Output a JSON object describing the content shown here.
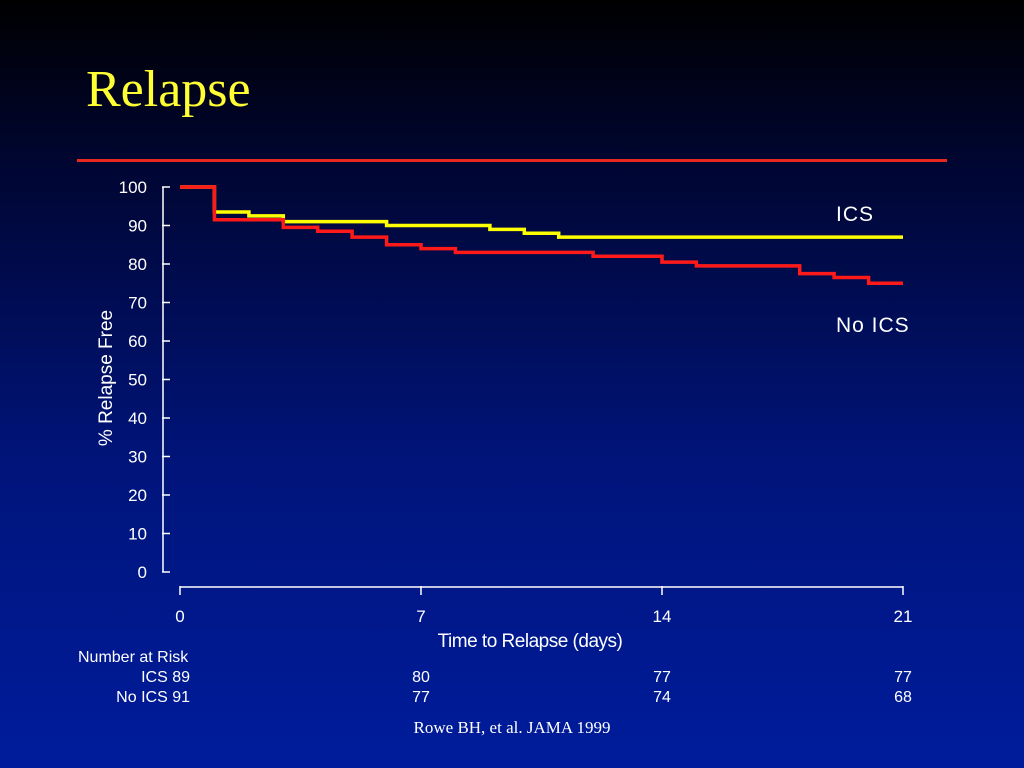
{
  "slide": {
    "title": "Relapse",
    "citation": "Rowe BH, et al. JAMA 1999"
  },
  "colors": {
    "title": "#ffff33",
    "rule": "#e8281e",
    "ics": "#ffff00",
    "no_ics": "#ff1a1a"
  },
  "chart_data": {
    "type": "line",
    "step": true,
    "xlabel": "Time to Relapse (days)",
    "ylabel": "% Relapse Free",
    "xlim": [
      0,
      21
    ],
    "ylim": [
      0,
      100
    ],
    "xticks": [
      0,
      7,
      14,
      21
    ],
    "yticks": [
      0,
      10,
      20,
      30,
      40,
      50,
      60,
      70,
      80,
      90,
      100
    ],
    "grid": false,
    "legend": "inline-right",
    "series": [
      {
        "name": "ICS",
        "color": "#ffff00",
        "points": [
          [
            0,
            100
          ],
          [
            1,
            100
          ],
          [
            1,
            93.5
          ],
          [
            2,
            93.5
          ],
          [
            2,
            92.5
          ],
          [
            3,
            92.5
          ],
          [
            3,
            91
          ],
          [
            6,
            91
          ],
          [
            6,
            90
          ],
          [
            9,
            90
          ],
          [
            9,
            89
          ],
          [
            10,
            89
          ],
          [
            10,
            88
          ],
          [
            11,
            88
          ],
          [
            11,
            87
          ],
          [
            21,
            87
          ]
        ]
      },
      {
        "name": "No ICS",
        "color": "#ff1a1a",
        "points": [
          [
            0,
            100
          ],
          [
            1,
            100
          ],
          [
            1,
            91.5
          ],
          [
            3,
            91.5
          ],
          [
            3,
            89.5
          ],
          [
            4,
            89.5
          ],
          [
            4,
            88.5
          ],
          [
            5,
            88.5
          ],
          [
            5,
            87
          ],
          [
            6,
            87
          ],
          [
            6,
            85
          ],
          [
            7,
            85
          ],
          [
            7,
            84
          ],
          [
            8,
            84
          ],
          [
            8,
            83
          ],
          [
            12,
            83
          ],
          [
            12,
            82
          ],
          [
            14,
            82
          ],
          [
            14,
            80.5
          ],
          [
            15,
            80.5
          ],
          [
            15,
            79.5
          ],
          [
            18,
            79.5
          ],
          [
            18,
            77.5
          ],
          [
            19,
            77.5
          ],
          [
            19,
            76.5
          ],
          [
            20,
            76.5
          ],
          [
            20,
            75
          ],
          [
            21,
            75
          ]
        ]
      }
    ],
    "number_at_risk": {
      "header": "Number at Risk",
      "rows": [
        {
          "label": "ICS",
          "values": [
            89,
            80,
            77,
            77
          ]
        },
        {
          "label": "No ICS",
          "values": [
            91,
            77,
            74,
            68
          ]
        }
      ]
    }
  }
}
